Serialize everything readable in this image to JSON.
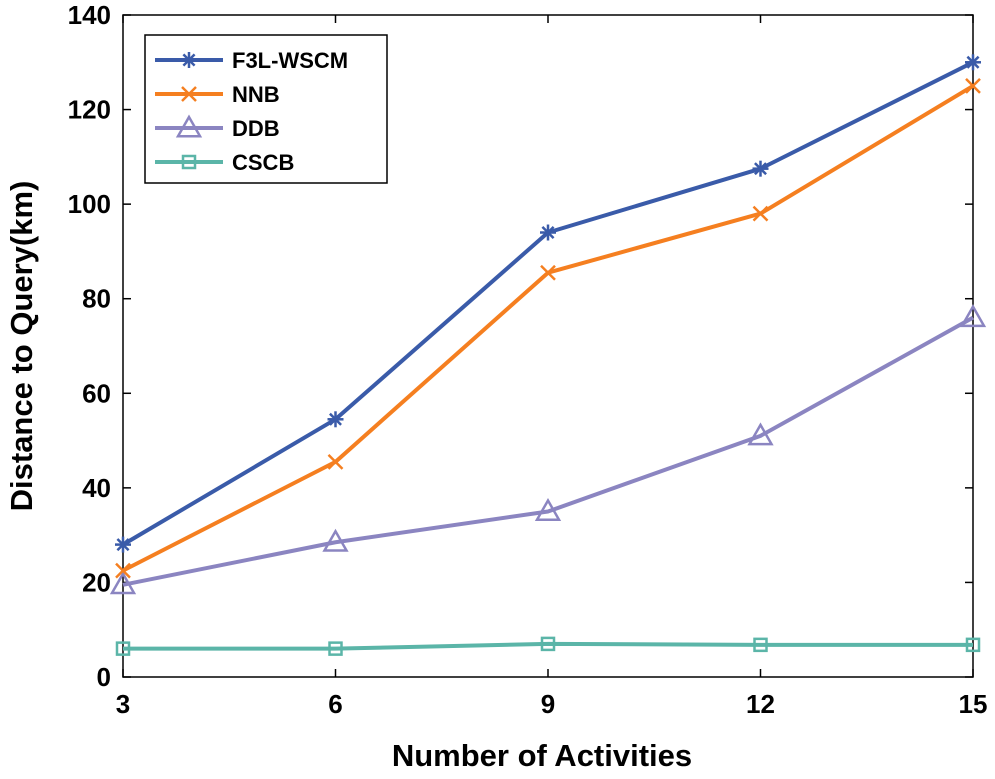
{
  "chart_data": {
    "type": "line",
    "title": "",
    "xlabel": "Number of Activities",
    "ylabel": "Distance to Query(km)",
    "x": [
      3,
      6,
      9,
      12,
      15
    ],
    "xticks": [
      "3",
      "6",
      "9",
      "12",
      "15"
    ],
    "yticks": [
      "0",
      "20",
      "40",
      "60",
      "80",
      "100",
      "120",
      "140"
    ],
    "xlim": [
      3,
      15
    ],
    "ylim": [
      0,
      140
    ],
    "grid": true,
    "legend_position": "top-left",
    "series": [
      {
        "name": "F3L-WSCM",
        "color": "#3A5BA9",
        "marker": "asterisk",
        "values": [
          28,
          54.5,
          94,
          107.5,
          130
        ]
      },
      {
        "name": "NNB",
        "color": "#F57F20",
        "marker": "x",
        "values": [
          22.5,
          45.5,
          85.5,
          98,
          125
        ]
      },
      {
        "name": "DDB",
        "color": "#8B85C1",
        "marker": "triangle",
        "values": [
          19.5,
          28.5,
          35,
          51,
          76
        ]
      },
      {
        "name": "CSCB",
        "color": "#5BB5A8",
        "marker": "square",
        "values": [
          6,
          6,
          7,
          6.8,
          6.8
        ]
      }
    ]
  }
}
